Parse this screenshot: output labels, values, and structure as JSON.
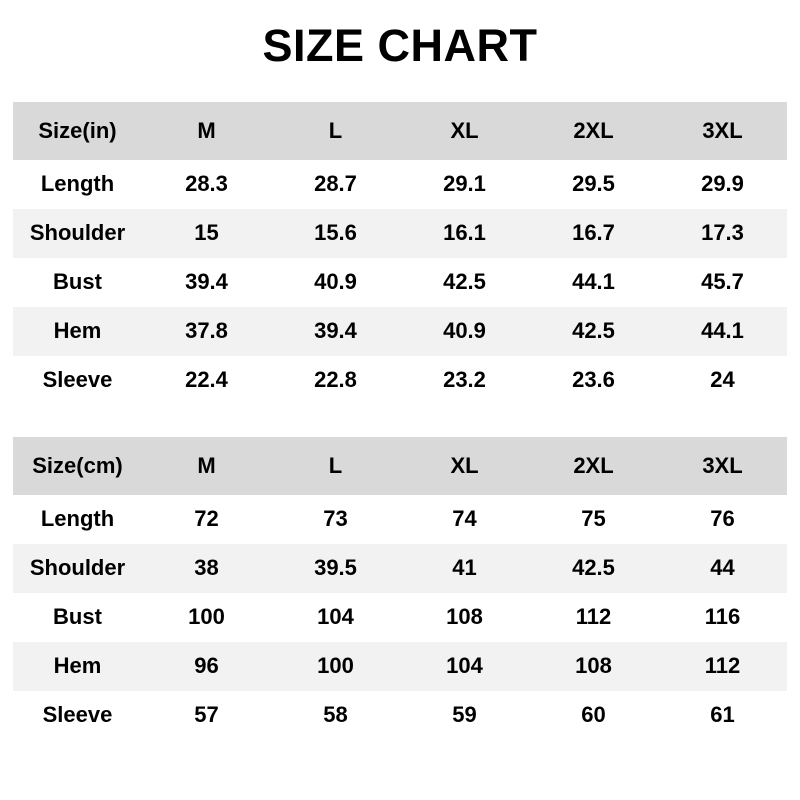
{
  "title": "SIZE CHART",
  "colors": {
    "page_bg": "#ffffff",
    "header_row_bg": "#d9d9d9",
    "alt_row_bg": "#f2f2f2",
    "text": "#000000"
  },
  "chart_data": [
    {
      "type": "table",
      "title": "SIZE CHART",
      "unit_header": "Size(in)",
      "size_columns": [
        "M",
        "L",
        "XL",
        "2XL",
        "3XL"
      ],
      "rows": [
        {
          "label": "Length",
          "values": [
            "28.3",
            "28.7",
            "29.1",
            "29.5",
            "29.9"
          ]
        },
        {
          "label": "Shoulder",
          "values": [
            "15",
            "15.6",
            "16.1",
            "16.7",
            "17.3"
          ]
        },
        {
          "label": "Bust",
          "values": [
            "39.4",
            "40.9",
            "42.5",
            "44.1",
            "45.7"
          ]
        },
        {
          "label": "Hem",
          "values": [
            "37.8",
            "39.4",
            "40.9",
            "42.5",
            "44.1"
          ]
        },
        {
          "label": "Sleeve",
          "values": [
            "22.4",
            "22.8",
            "23.2",
            "23.6",
            "24"
          ]
        }
      ]
    },
    {
      "type": "table",
      "title": "SIZE CHART",
      "unit_header": "Size(cm)",
      "size_columns": [
        "M",
        "L",
        "XL",
        "2XL",
        "3XL"
      ],
      "rows": [
        {
          "label": "Length",
          "values": [
            "72",
            "73",
            "74",
            "75",
            "76"
          ]
        },
        {
          "label": "Shoulder",
          "values": [
            "38",
            "39.5",
            "41",
            "42.5",
            "44"
          ]
        },
        {
          "label": "Bust",
          "values": [
            "100",
            "104",
            "108",
            "112",
            "116"
          ]
        },
        {
          "label": "Hem",
          "values": [
            "96",
            "100",
            "104",
            "108",
            "112"
          ]
        },
        {
          "label": "Sleeve",
          "values": [
            "57",
            "58",
            "59",
            "60",
            "61"
          ]
        }
      ]
    }
  ]
}
